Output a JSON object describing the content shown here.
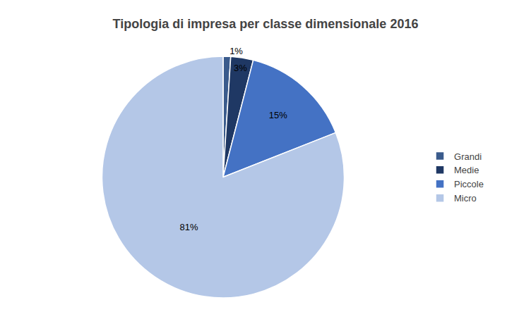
{
  "chart_data": {
    "type": "pie",
    "title": "Tipologia di impresa per classe dimensionale 2016",
    "categories": [
      "Grandi",
      "Medie",
      "Piccole",
      "Micro"
    ],
    "values": [
      1,
      3,
      15,
      81
    ],
    "value_labels": [
      "1%",
      "3%",
      "15%",
      "81%"
    ],
    "colors": [
      "#3A5B8C",
      "#1F3864",
      "#4472C4",
      "#B4C7E7"
    ],
    "data_labels": true,
    "legend": "right"
  }
}
